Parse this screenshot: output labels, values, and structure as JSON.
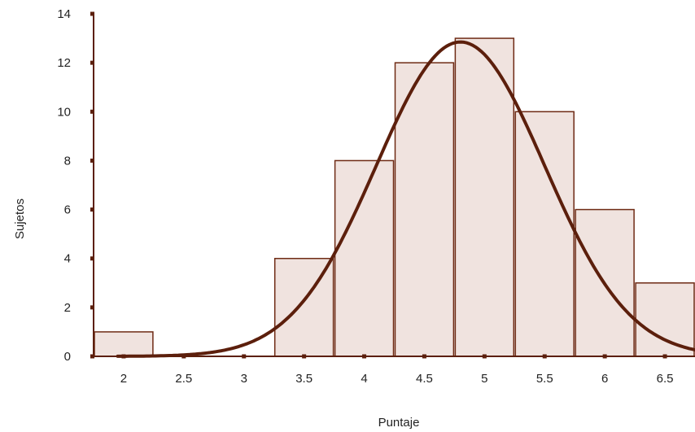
{
  "chart_data": {
    "type": "bar",
    "title": "",
    "xlabel": "Puntaje",
    "ylabel": "Sujetos",
    "xlim": [
      1.75,
      6.75
    ],
    "ylim": [
      0,
      14
    ],
    "x_ticks": [
      "2",
      "2.5",
      "3",
      "3.5",
      "4",
      "4.5",
      "5",
      "5.5",
      "6",
      "6.5"
    ],
    "y_ticks": [
      "0",
      "2",
      "4",
      "6",
      "8",
      "10",
      "12",
      "14"
    ],
    "bin_width": 0.5,
    "categories": [
      "2",
      "2.5",
      "3",
      "3.5",
      "4",
      "4.5",
      "5",
      "5.5",
      "6",
      "6.5"
    ],
    "values": [
      1,
      0,
      0,
      4,
      8,
      12,
      13,
      10,
      6,
      3
    ],
    "curve": {
      "type": "normal",
      "mean": 4.8,
      "sd": 0.7,
      "peak": 12.85
    },
    "grid": false,
    "legend": "none",
    "colors": {
      "bar_fill": "#f0e3df",
      "bar_stroke": "#6e2a14",
      "curve": "#5c1f0c",
      "axis": "#5c1f0c",
      "text": "#222222"
    }
  }
}
